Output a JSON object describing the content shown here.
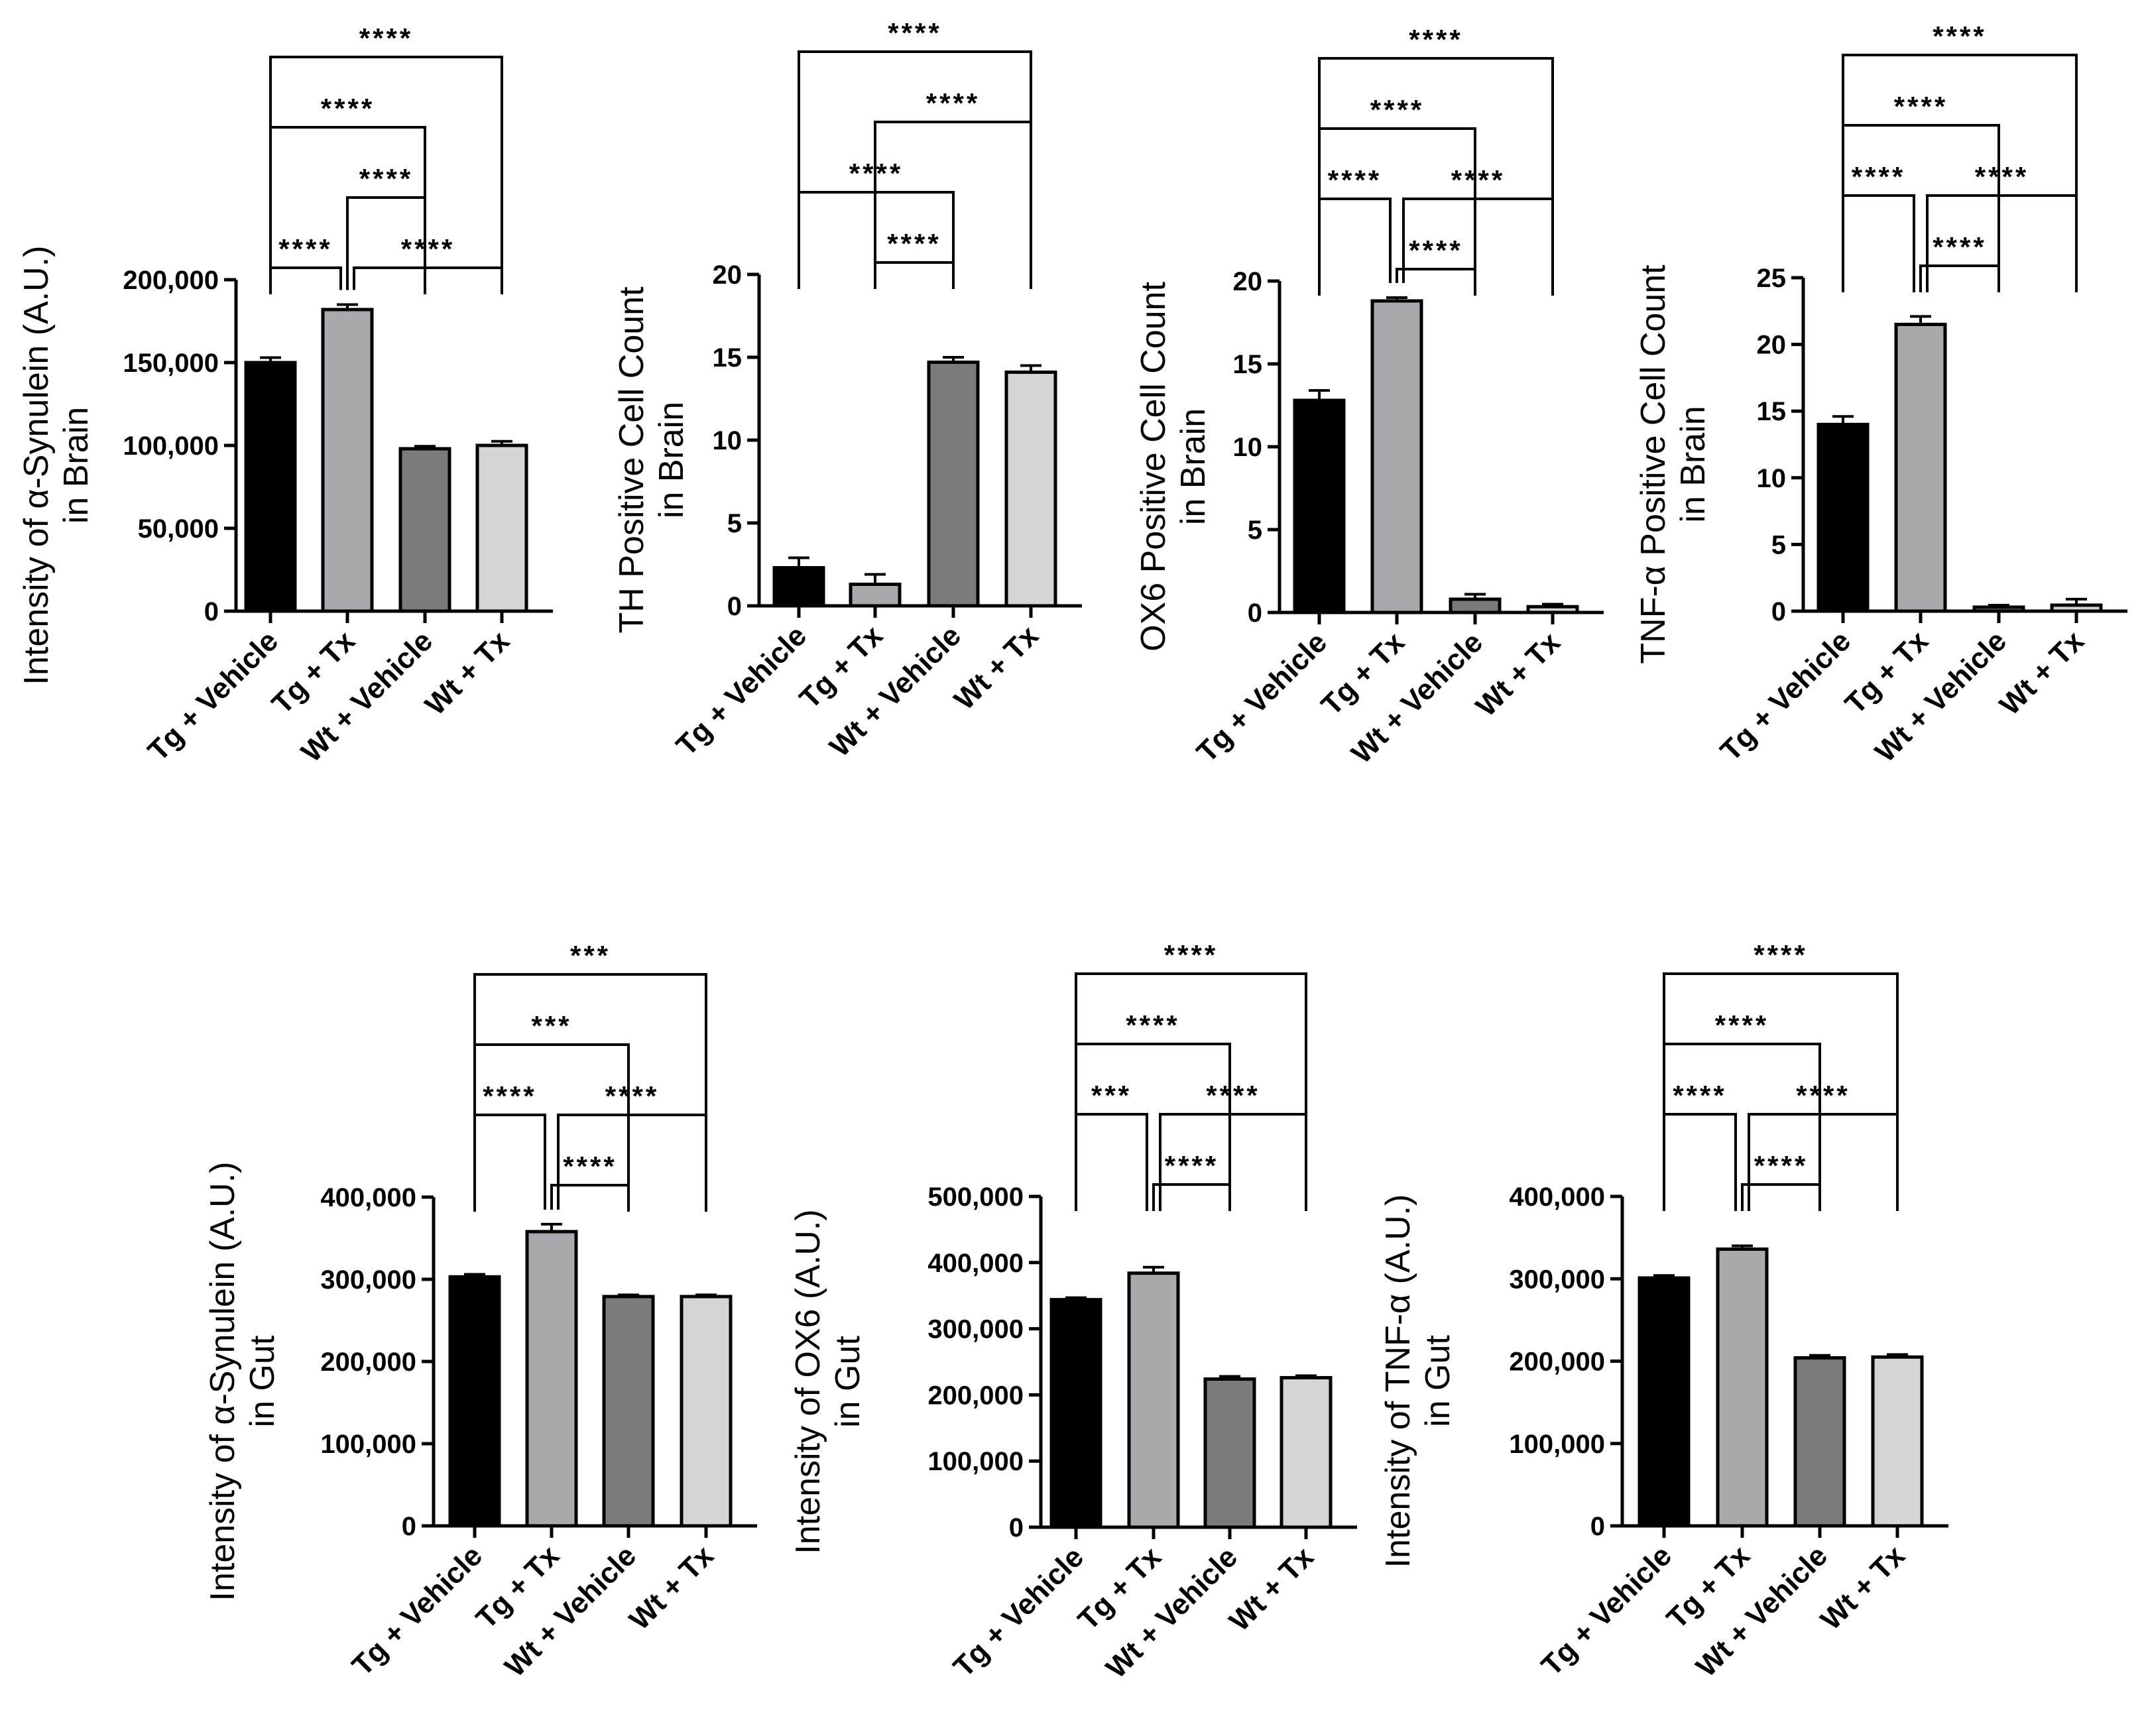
{
  "chart_data": [
    {
      "type": "bar",
      "title": "",
      "ylabel": [
        "Intensity of α-Synulein (A.U.)",
        "in Brain"
      ],
      "categories": [
        "Tg + Vehicle",
        "Tg + Tx",
        "Wt + Vehicle",
        "Wt + Tx"
      ],
      "values": [
        150000,
        182000,
        98000,
        100000
      ],
      "errors": [
        3000,
        3000,
        1500,
        2500
      ],
      "colors": [
        "#000000",
        "#a9a9ad",
        "#7b7b7b",
        "#d5d5d5"
      ],
      "ylim": [
        0,
        200000
      ],
      "yticks": [
        0,
        50000,
        100000,
        150000,
        200000
      ],
      "ytick_labels": [
        "0",
        "50,000",
        "100,000",
        "150,000",
        "200,000"
      ],
      "comparisons": [
        {
          "from": 0,
          "to": 1,
          "label": "****",
          "level": 0
        },
        {
          "from": 1,
          "to": 3,
          "label": "****",
          "level": 0
        },
        {
          "from": 1,
          "to": 2,
          "label": "****",
          "level": 1
        },
        {
          "from": 0,
          "to": 2,
          "label": "****",
          "level": 2
        },
        {
          "from": 0,
          "to": 3,
          "label": "****",
          "level": 3
        }
      ]
    },
    {
      "type": "bar",
      "title": "",
      "ylabel": [
        "TH Positive Cell Count",
        "in Brain"
      ],
      "categories": [
        "Tg + Vehicle",
        "Tg + Tx",
        "Wt + Vehicle",
        "Wt + Tx"
      ],
      "values": [
        2.3,
        1.3,
        14.7,
        14.1
      ],
      "errors": [
        0.6,
        0.6,
        0.3,
        0.4
      ],
      "colors": [
        "#000000",
        "#a9a9ad",
        "#7b7b7b",
        "#d5d5d5"
      ],
      "ylim": [
        0,
        20
      ],
      "yticks": [
        0,
        5,
        10,
        15,
        20
      ],
      "ytick_labels": [
        "0",
        "5",
        "10",
        "15",
        "20"
      ],
      "comparisons": [
        {
          "from": 1,
          "to": 2,
          "label": "****",
          "level": 0
        },
        {
          "from": 0,
          "to": 2,
          "label": "****",
          "level": 1
        },
        {
          "from": 1,
          "to": 3,
          "label": "****",
          "level": 2
        },
        {
          "from": 0,
          "to": 3,
          "label": "****",
          "level": 3
        }
      ]
    },
    {
      "type": "bar",
      "title": "",
      "ylabel": [
        "OX6 Positive Cell Count",
        "in Brain"
      ],
      "categories": [
        "Tg + Vehicle",
        "Tg + Tx",
        "Wt + Vehicle",
        "Wt + Tx"
      ],
      "values": [
        12.8,
        18.8,
        0.8,
        0.35
      ],
      "errors": [
        0.6,
        0.2,
        0.3,
        0.15
      ],
      "colors": [
        "#000000",
        "#a9a9ad",
        "#7b7b7b",
        "#d5d5d5"
      ],
      "ylim": [
        0,
        20
      ],
      "yticks": [
        0,
        5,
        10,
        15,
        20
      ],
      "ytick_labels": [
        "0",
        "5",
        "10",
        "15",
        "20"
      ],
      "comparisons": [
        {
          "from": 1,
          "to": 2,
          "label": "****",
          "level": 0
        },
        {
          "from": 0,
          "to": 1,
          "label": "****",
          "level": 1
        },
        {
          "from": 1,
          "to": 3,
          "label": "****",
          "level": 1
        },
        {
          "from": 0,
          "to": 2,
          "label": "****",
          "level": 2
        },
        {
          "from": 0,
          "to": 3,
          "label": "****",
          "level": 3
        }
      ]
    },
    {
      "type": "bar",
      "title": "",
      "ylabel": [
        "TNF-α Positive Cell Count",
        "in Brain"
      ],
      "categories": [
        "Tg + Vehicle",
        "Tg + Tx",
        "Wt + Vehicle",
        "Wt + Tx"
      ],
      "values": [
        14.0,
        21.5,
        0.3,
        0.45
      ],
      "errors": [
        0.6,
        0.6,
        0.15,
        0.45
      ],
      "colors": [
        "#000000",
        "#a9a9ad",
        "#7b7b7b",
        "#d5d5d5"
      ],
      "ylim": [
        0,
        25
      ],
      "yticks": [
        0,
        5,
        10,
        15,
        20,
        25
      ],
      "ytick_labels": [
        "0",
        "5",
        "10",
        "15",
        "20",
        "25"
      ],
      "comparisons": [
        {
          "from": 1,
          "to": 2,
          "label": "****",
          "level": 0
        },
        {
          "from": 0,
          "to": 1,
          "label": "****",
          "level": 1
        },
        {
          "from": 1,
          "to": 3,
          "label": "****",
          "level": 1
        },
        {
          "from": 0,
          "to": 2,
          "label": "****",
          "level": 2
        },
        {
          "from": 0,
          "to": 3,
          "label": "****",
          "level": 3
        }
      ]
    },
    {
      "type": "bar",
      "title": "",
      "ylabel": [
        "Intensity of α-Synulein (A.U.)",
        "in Gut"
      ],
      "categories": [
        "Tg + Vehicle",
        "Tg + Tx",
        "Wt + Vehicle",
        "Wt + Tx"
      ],
      "values": [
        303000,
        358000,
        279000,
        279000
      ],
      "errors": [
        3000,
        9000,
        2000,
        2000
      ],
      "colors": [
        "#000000",
        "#a9a9ad",
        "#7b7b7b",
        "#d5d5d5"
      ],
      "ylim": [
        0,
        400000
      ],
      "yticks": [
        0,
        100000,
        200000,
        300000,
        400000
      ],
      "ytick_labels": [
        "0",
        "100,000",
        "200,000",
        "300,000",
        "400,000"
      ],
      "comparisons": [
        {
          "from": 1,
          "to": 2,
          "label": "****",
          "level": 0
        },
        {
          "from": 0,
          "to": 1,
          "label": "****",
          "level": 1
        },
        {
          "from": 1,
          "to": 3,
          "label": "****",
          "level": 1
        },
        {
          "from": 0,
          "to": 2,
          "label": "***",
          "level": 2
        },
        {
          "from": 0,
          "to": 3,
          "label": "***",
          "level": 3
        }
      ]
    },
    {
      "type": "bar",
      "title": "",
      "ylabel": [
        "Intensity of OX6 (A.U.)",
        "in Gut"
      ],
      "categories": [
        "Tg + Vehicle",
        "Tg + Tx",
        "Wt + Vehicle",
        "Wt + Tx"
      ],
      "values": [
        344000,
        384000,
        224000,
        226000
      ],
      "errors": [
        3000,
        9000,
        4000,
        3000
      ],
      "colors": [
        "#000000",
        "#a9a9ad",
        "#7b7b7b",
        "#d5d5d5"
      ],
      "ylim": [
        0,
        500000
      ],
      "yticks": [
        0,
        100000,
        200000,
        300000,
        400000,
        500000
      ],
      "ytick_labels": [
        "0",
        "100,000",
        "200,000",
        "300,000",
        "400,000",
        "500,000"
      ],
      "comparisons": [
        {
          "from": 1,
          "to": 2,
          "label": "****",
          "level": 0
        },
        {
          "from": 0,
          "to": 1,
          "label": "***",
          "level": 1
        },
        {
          "from": 1,
          "to": 3,
          "label": "****",
          "level": 1
        },
        {
          "from": 0,
          "to": 2,
          "label": "****",
          "level": 2
        },
        {
          "from": 0,
          "to": 3,
          "label": "****",
          "level": 3
        }
      ]
    },
    {
      "type": "bar",
      "title": "",
      "ylabel": [
        "Intensity of TNF-α (A.U.)",
        "in Gut"
      ],
      "categories": [
        "Tg + Vehicle",
        "Tg + Tx",
        "Wt + Vehicle",
        "Wt + Tx"
      ],
      "values": [
        301000,
        336000,
        204000,
        205000
      ],
      "errors": [
        3000,
        4000,
        3000,
        3000
      ],
      "colors": [
        "#000000",
        "#a9a9ad",
        "#7b7b7b",
        "#d5d5d5"
      ],
      "ylim": [
        0,
        400000
      ],
      "yticks": [
        0,
        100000,
        200000,
        300000,
        400000
      ],
      "ytick_labels": [
        "0",
        "100,000",
        "200,000",
        "300,000",
        "400,000"
      ],
      "comparisons": [
        {
          "from": 1,
          "to": 2,
          "label": "****",
          "level": 0
        },
        {
          "from": 0,
          "to": 1,
          "label": "****",
          "level": 1
        },
        {
          "from": 1,
          "to": 3,
          "label": "****",
          "level": 1
        },
        {
          "from": 0,
          "to": 2,
          "label": "****",
          "level": 2
        },
        {
          "from": 0,
          "to": 3,
          "label": "****",
          "level": 3
        }
      ]
    }
  ]
}
